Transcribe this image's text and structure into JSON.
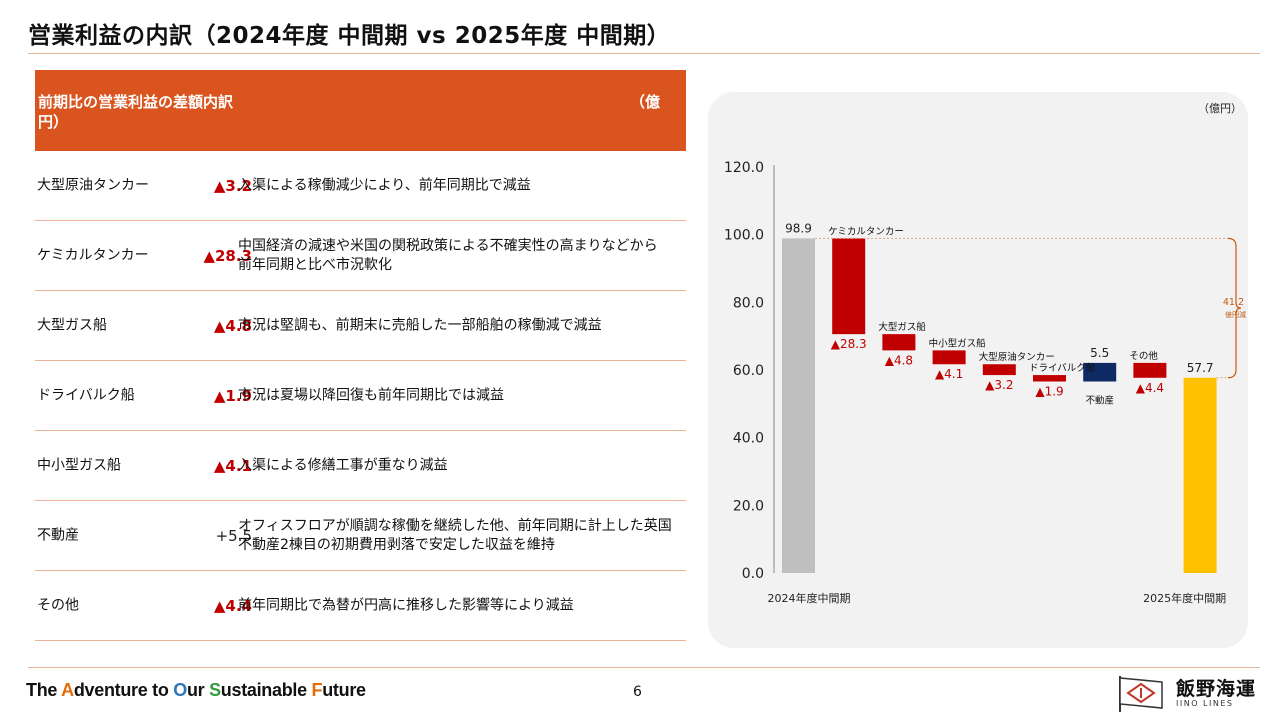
{
  "title": "営業利益の内訳（2024年度 中間期 vs 2025年度 中間期）",
  "table": {
    "header_label": "前期比の営業利益の差額内訳",
    "header_unit": "（億",
    "header_unit_cont": "円）",
    "rows": [
      {
        "segment": "大型原油タンカー",
        "value": "▲3.2",
        "description": [
          "入渠による稼働減少により、前年同期比で減益"
        ]
      },
      {
        "segment": "ケミカルタンカー",
        "value": "▲28.3",
        "description": [
          "中国経済の減速や米国の関税政策による不確実性の高まりなどから",
          "前年同期と比べ市況軟化"
        ]
      },
      {
        "segment": "大型ガス船",
        "value": "▲4.8",
        "description": [
          "市況は堅調も、前期末に売船した一部船舶の稼働減で減益"
        ]
      },
      {
        "segment": "ドライバルク船",
        "value": "▲1.9",
        "description": [
          "市況は夏場以降回復も前年同期比では減益"
        ]
      },
      {
        "segment": "中小型ガス船",
        "value": "▲4.1",
        "description": [
          "入渠による修繕工事が重なり減益"
        ]
      },
      {
        "segment": "不動産",
        "value": "+5.5",
        "description": [
          "オフィスフロアが順調な稼働を継続した他、前年同期に計上した英国",
          "不動産2棟目の初期費用剥落で安定した収益を維持"
        ]
      },
      {
        "segment": "その他",
        "value": "▲4.4",
        "description": [
          "前年同期比で為替が円高に推移した影響等により減益"
        ]
      }
    ]
  },
  "chart_data": {
    "type": "bar",
    "unit_label": "（億円）",
    "ylim": [
      0,
      120
    ],
    "y_ticks": [
      "0.0",
      "20.0",
      "40.0",
      "60.0",
      "80.0",
      "100.0",
      "120.0"
    ],
    "x_labels": [
      "2024年度中間期",
      "2025年度中間期"
    ],
    "steps": [
      {
        "name": "2024年度中間期",
        "kind": "total",
        "value": 98.9,
        "label": "98.9",
        "color": "#bfbfbf"
      },
      {
        "name": "ケミカルタンカー",
        "kind": "delta",
        "value": -28.3,
        "label": "▲28.3",
        "color": "#c00000"
      },
      {
        "name": "大型ガス船",
        "kind": "delta",
        "value": -4.8,
        "label": "▲4.8",
        "color": "#c00000"
      },
      {
        "name": "中小型ガス船",
        "kind": "delta",
        "value": -4.1,
        "label": "▲4.1",
        "color": "#c00000"
      },
      {
        "name": "大型原油タンカー",
        "kind": "delta",
        "value": -3.2,
        "label": "▲3.2",
        "color": "#c00000"
      },
      {
        "name": "ドライバルク船",
        "kind": "delta",
        "value": -1.9,
        "label": "▲1.9",
        "color": "#c00000"
      },
      {
        "name": "不動産",
        "kind": "delta",
        "value": 5.5,
        "label": "5.5",
        "color": "#0e2a64"
      },
      {
        "name": "その他",
        "kind": "delta",
        "value": -4.4,
        "label": "▲4.4",
        "color": "#c00000"
      },
      {
        "name": "2025年度中間期",
        "kind": "total",
        "value": 57.7,
        "label": "57.7",
        "color": "#ffc000"
      }
    ],
    "bracket": {
      "value": "41.2",
      "label": "億円減",
      "color": "#c55a11"
    }
  },
  "footer": {
    "tagline_parts": [
      {
        "text": "The ",
        "color": "#111111"
      },
      {
        "text": "A",
        "color": "#e36c09"
      },
      {
        "text": "dventure to ",
        "color": "#111111"
      },
      {
        "text": "O",
        "color": "#2e75b6"
      },
      {
        "text": "ur ",
        "color": "#111111"
      },
      {
        "text": "S",
        "color": "#2e9b3e"
      },
      {
        "text": "ustainable ",
        "color": "#111111"
      },
      {
        "text": "F",
        "color": "#e36c09"
      },
      {
        "text": "uture",
        "color": "#111111"
      }
    ],
    "page_number": "6",
    "company_name": "飯野海運",
    "company_name_en": "IINO LINES"
  }
}
